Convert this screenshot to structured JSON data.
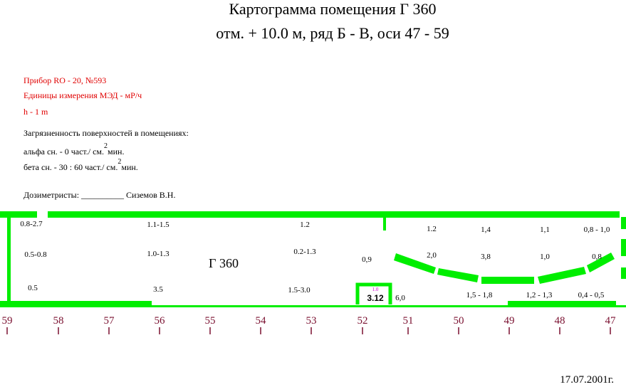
{
  "title": {
    "line1": "Картограмма помещения Г 360",
    "line2": "отм. + 10.0 м, ряд Б - В, оси 47 - 59"
  },
  "instrument": [
    "Прибор RO - 20, №593",
    "Единицы измерения МЭД - мР/ч",
    "h - 1 m"
  ],
  "contamination": {
    "heading": "Загрязненность поверхностей в помещениях:",
    "lines": [
      {
        "text": "альфа сн. - 0 част./ см.",
        "sup": "2",
        "tail": "мин."
      },
      {
        "text": "бета сн.   - 30 : 60 част./ см.",
        "sup": "2",
        "tail": "мин."
      }
    ]
  },
  "dosimetrists": "Дозиметристы: __________ Сиземов В.Н.",
  "room_label": "Г 360",
  "readings": [
    "0.8-2.7",
    "1.1-1.5",
    "1.2",
    "1.2",
    "1,4",
    "1,1",
    "0,8 - 1,0",
    "0.5-0.8",
    "1.0-1.3",
    "0.2-1.3",
    "0,9",
    "2,0",
    "3,8",
    "1,0",
    "0,8",
    "0.5",
    "3.5",
    "1.5-3.0",
    "6,0",
    "1,5 - 1,8",
    "1,2 - 1,3",
    "0,4 - 0,5"
  ],
  "box": {
    "small": "1.0",
    "value": "3.12"
  },
  "axis_labels": [
    "59",
    "58",
    "57",
    "56",
    "55",
    "54",
    "53",
    "52",
    "51",
    "50",
    "49",
    "48",
    "47"
  ],
  "date": "17.07.2001г."
}
